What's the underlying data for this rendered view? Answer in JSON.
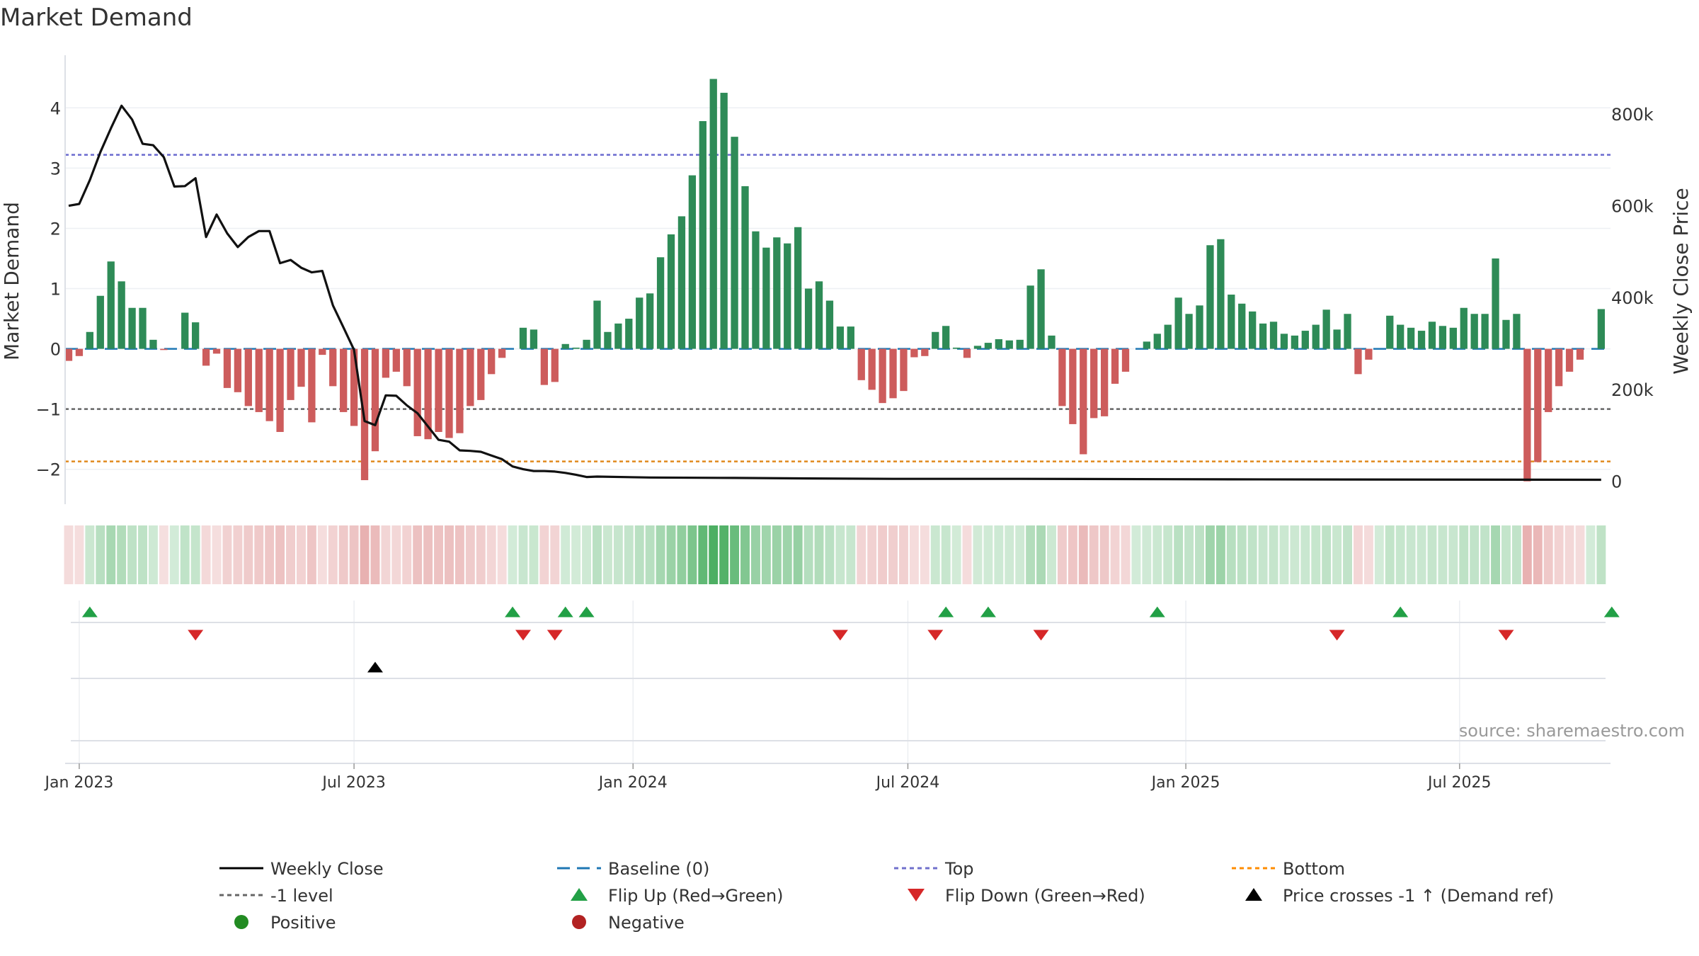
{
  "chart_data": {
    "type": "bar",
    "title": "Market Demand",
    "ylabel_left": "Market Demand",
    "ylabel_right": "Weekly Close Price",
    "source": "source: sharemaestro.com",
    "y_left_lim": [
      -2.25,
      4.85
    ],
    "y_left_ticks": [
      {
        "v": 4,
        "label": "4"
      },
      {
        "v": 3,
        "label": "3"
      },
      {
        "v": 2,
        "label": "2"
      },
      {
        "v": 1,
        "label": "1"
      },
      {
        "v": 0,
        "label": "0"
      },
      {
        "v": -1,
        "label": "−1"
      },
      {
        "v": -2,
        "label": "−2"
      }
    ],
    "y_right_lim": [
      -7000,
      925000
    ],
    "y_right_ticks": [
      {
        "v": 800000,
        "label": "800k"
      },
      {
        "v": 600000,
        "label": "600k"
      },
      {
        "v": 400000,
        "label": "400k"
      },
      {
        "v": 200000,
        "label": "200k"
      },
      {
        "v": 0,
        "label": "0"
      }
    ],
    "x_ticks": [
      {
        "week": 1,
        "label": "Jan 2023"
      },
      {
        "week": 27,
        "label": "Jul 2023"
      },
      {
        "week": 53.4,
        "label": "Jan 2024"
      },
      {
        "week": 79.4,
        "label": "Jul 2024"
      },
      {
        "week": 105.7,
        "label": "Jan 2025"
      },
      {
        "week": 131.6,
        "label": "Jul 2025"
      }
    ],
    "reference_lines": {
      "baseline": 0,
      "top": 3.22,
      "minus_one": -1,
      "bottom": -1.87
    },
    "demand": [
      -0.2,
      -0.12,
      0.28,
      0.88,
      1.45,
      1.12,
      0.68,
      0.68,
      0.15,
      -0.02,
      0,
      0.6,
      0.44,
      -0.28,
      -0.08,
      -0.65,
      -0.72,
      -0.95,
      -1.05,
      -1.2,
      -1.38,
      -0.85,
      -0.63,
      -1.22,
      -0.1,
      -0.62,
      -1.05,
      -1.28,
      -2.18,
      -1.7,
      -0.48,
      -0.38,
      -0.62,
      -1.45,
      -1.5,
      -1.38,
      -1.48,
      -1.4,
      -0.95,
      -0.85,
      -0.42,
      -0.15,
      0,
      0.35,
      0.32,
      -0.6,
      -0.55,
      0.08,
      0.02,
      0.15,
      0.8,
      0.28,
      0.42,
      0.5,
      0.85,
      0.92,
      1.52,
      1.9,
      2.2,
      2.88,
      3.78,
      4.48,
      4.25,
      3.52,
      2.7,
      1.95,
      1.68,
      1.85,
      1.75,
      2.02,
      1.0,
      1.12,
      0.8,
      0.37,
      0.37,
      -0.52,
      -0.68,
      -0.9,
      -0.82,
      -0.7,
      -0.14,
      -0.12,
      0.28,
      0.38,
      0.02,
      -0.15,
      0.05,
      0.1,
      0.16,
      0.14,
      0.15,
      1.05,
      1.32,
      0.22,
      -0.95,
      -1.25,
      -1.75,
      -1.15,
      -1.12,
      -0.58,
      -0.38,
      0,
      0.12,
      0.25,
      0.4,
      0.85,
      0.58,
      0.72,
      1.72,
      1.82,
      0.9,
      0.75,
      0.62,
      0.42,
      0.45,
      0.25,
      0.22,
      0.3,
      0.4,
      0.65,
      0.32,
      0.58,
      -0.42,
      -0.18,
      0,
      0.55,
      0.4,
      0.35,
      0.3,
      0.45,
      0.38,
      0.35,
      0.68,
      0.58,
      0.58,
      1.5,
      0.48,
      0.58,
      -2.2,
      -1.88,
      -1.05,
      -0.62,
      -0.38,
      -0.18,
      0,
      0.66
    ],
    "weekly_close_points": [
      [
        0,
        600000
      ],
      [
        1,
        604000
      ],
      [
        2,
        656000
      ],
      [
        3,
        717000
      ],
      [
        4,
        769000
      ],
      [
        5,
        818000
      ],
      [
        6,
        788000
      ],
      [
        7,
        735000
      ],
      [
        8,
        732000
      ],
      [
        9,
        706000
      ],
      [
        10,
        642000
      ],
      [
        11,
        643000
      ],
      [
        12,
        660000
      ],
      [
        13,
        532000
      ],
      [
        14,
        581000
      ],
      [
        15,
        540000
      ],
      [
        16,
        510000
      ],
      [
        17,
        532000
      ],
      [
        18,
        545000
      ],
      [
        19,
        545000
      ],
      [
        20,
        475000
      ],
      [
        21,
        482000
      ],
      [
        22,
        465000
      ],
      [
        23,
        455000
      ],
      [
        24,
        458000
      ],
      [
        25,
        383000
      ],
      [
        26,
        335000
      ],
      [
        27,
        286000
      ],
      [
        28,
        131000
      ],
      [
        29,
        122000
      ],
      [
        30,
        187000
      ],
      [
        31,
        186000
      ],
      [
        32,
        165000
      ],
      [
        33,
        148000
      ],
      [
        34,
        119000
      ],
      [
        35,
        90000
      ],
      [
        36,
        86000
      ],
      [
        37,
        67000
      ],
      [
        38,
        66000
      ],
      [
        39,
        64000
      ],
      [
        40,
        56000
      ],
      [
        41,
        48000
      ],
      [
        42,
        32000
      ],
      [
        43,
        26000
      ],
      [
        44,
        22000
      ],
      [
        45,
        22000
      ],
      [
        46,
        21000
      ],
      [
        47,
        18000
      ],
      [
        48,
        14000
      ],
      [
        49,
        9000
      ],
      [
        50,
        10000
      ],
      [
        55,
        8000
      ],
      [
        63,
        7000
      ],
      [
        70,
        6000
      ],
      [
        78,
        5000
      ],
      [
        90,
        5000
      ],
      [
        110,
        4000
      ],
      [
        145,
        3000
      ]
    ],
    "heatmap_strip_note": "one cell per week; colour intensity follows demand value",
    "flip_up_weeks": [
      2,
      42,
      47,
      49,
      83,
      87,
      103,
      126,
      146
    ],
    "flip_down_weeks": [
      12,
      43,
      46,
      73,
      82,
      92,
      120,
      136
    ],
    "price_cross_weeks": [
      29
    ],
    "legend": [
      {
        "name": "Weekly Close",
        "symbol": "line-solid",
        "color": "#000000"
      },
      {
        "name": "Baseline (0)",
        "symbol": "line-dashed",
        "color": "#1f77b4"
      },
      {
        "name": "Top",
        "symbol": "line-dotted",
        "color": "#7070cc"
      },
      {
        "name": "Bottom",
        "symbol": "line-dotted",
        "color": "#ff8c00"
      },
      {
        "name": "-1 level",
        "symbol": "line-dotted",
        "color": "#666666"
      },
      {
        "name": "Flip Up (Red→Green)",
        "symbol": "triangle-up",
        "color": "#22a046"
      },
      {
        "name": "Flip Down (Green→Red)",
        "symbol": "triangle-down",
        "color": "#d62728"
      },
      {
        "name": "Price crosses -1 ↑ (Demand ref)",
        "symbol": "triangle-up",
        "color": "#000000"
      },
      {
        "name": "Positive",
        "symbol": "circle",
        "color": "#228b22"
      },
      {
        "name": "Negative",
        "symbol": "circle",
        "color": "#b22222"
      }
    ],
    "colors": {
      "positive": "#2e8b57",
      "negative": "#cd5c5c",
      "strip_pos": "#4caf62",
      "strip_neg": "#d98080"
    }
  }
}
